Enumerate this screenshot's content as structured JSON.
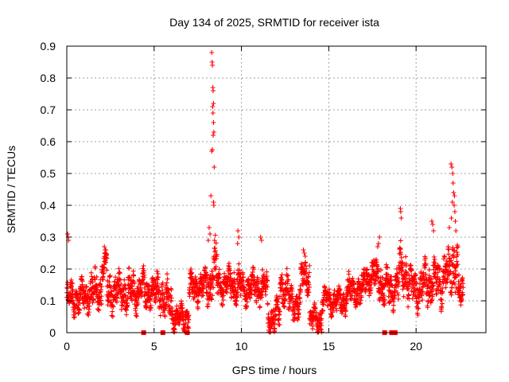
{
  "chart_data": {
    "type": "scatter",
    "title": "Day 134 of 2025, SRMTID for receiver ista",
    "xlabel": "GPS time / hours",
    "ylabel": "SRMTID / TECUs",
    "xlim": [
      0,
      24
    ],
    "ylim": [
      0,
      0.9
    ],
    "xticks": [
      0,
      5,
      10,
      15,
      20
    ],
    "yticks": [
      0,
      0.1,
      0.2,
      0.3,
      0.4,
      0.5,
      0.6,
      0.7,
      0.8,
      0.9
    ],
    "grid": true,
    "marker": "plus",
    "color": "#ff0000",
    "series": [
      {
        "name": "SRMTID",
        "segments": [
          {
            "x0": 0.0,
            "x1": 1.2,
            "base": 0.11,
            "amp": 0.05,
            "max": 0.31
          },
          {
            "x0": 1.2,
            "x1": 2.0,
            "base": 0.13,
            "amp": 0.06,
            "max": 0.25
          },
          {
            "x0": 2.0,
            "x1": 2.3,
            "base": 0.21,
            "amp": 0.04,
            "max": 0.27
          },
          {
            "x0": 2.3,
            "x1": 3.5,
            "base": 0.13,
            "amp": 0.06,
            "max": 0.26
          },
          {
            "x0": 3.5,
            "x1": 4.6,
            "base": 0.13,
            "amp": 0.06,
            "max": 0.21
          },
          {
            "x0": 4.6,
            "x1": 5.5,
            "base": 0.13,
            "amp": 0.06,
            "max": 0.24
          },
          {
            "x0": 5.5,
            "x1": 6.0,
            "base": 0.1,
            "amp": 0.06,
            "max": 0.22
          },
          {
            "x0": 6.0,
            "x1": 7.0,
            "base": 0.05,
            "amp": 0.04,
            "max": 0.11
          },
          {
            "x0": 7.0,
            "x1": 7.8,
            "base": 0.14,
            "amp": 0.05,
            "max": 0.2
          },
          {
            "x0": 7.8,
            "x1": 8.3,
            "base": 0.15,
            "amp": 0.06,
            "max": 0.33
          },
          {
            "x0": 8.3,
            "x1": 8.6,
            "base": 0.2,
            "amp": 0.08,
            "max": 0.88
          },
          {
            "x0": 8.6,
            "x1": 9.5,
            "base": 0.15,
            "amp": 0.05,
            "max": 0.23
          },
          {
            "x0": 9.5,
            "x1": 10.0,
            "base": 0.15,
            "amp": 0.06,
            "max": 0.32
          },
          {
            "x0": 10.0,
            "x1": 11.5,
            "base": 0.14,
            "amp": 0.05,
            "max": 0.3
          },
          {
            "x0": 11.5,
            "x1": 12.2,
            "base": 0.05,
            "amp": 0.05,
            "max": 0.15
          },
          {
            "x0": 12.2,
            "x1": 12.7,
            "base": 0.14,
            "amp": 0.06,
            "max": 0.23
          },
          {
            "x0": 12.7,
            "x1": 13.4,
            "base": 0.09,
            "amp": 0.05,
            "max": 0.17
          },
          {
            "x0": 13.4,
            "x1": 13.9,
            "base": 0.18,
            "amp": 0.05,
            "max": 0.26
          },
          {
            "x0": 13.9,
            "x1": 14.6,
            "base": 0.04,
            "amp": 0.04,
            "max": 0.12
          },
          {
            "x0": 14.6,
            "x1": 16.0,
            "base": 0.1,
            "amp": 0.04,
            "max": 0.18
          },
          {
            "x0": 16.0,
            "x1": 17.0,
            "base": 0.13,
            "amp": 0.05,
            "max": 0.21
          },
          {
            "x0": 17.0,
            "x1": 18.0,
            "base": 0.18,
            "amp": 0.06,
            "max": 0.3
          },
          {
            "x0": 18.0,
            "x1": 19.0,
            "base": 0.14,
            "amp": 0.06,
            "max": 0.25
          },
          {
            "x0": 19.0,
            "x1": 19.5,
            "base": 0.2,
            "amp": 0.07,
            "max": 0.39
          },
          {
            "x0": 19.5,
            "x1": 20.5,
            "base": 0.14,
            "amp": 0.06,
            "max": 0.28
          },
          {
            "x0": 20.5,
            "x1": 21.5,
            "base": 0.16,
            "amp": 0.07,
            "max": 0.35
          },
          {
            "x0": 21.5,
            "x1": 22.0,
            "base": 0.18,
            "amp": 0.07,
            "max": 0.3
          },
          {
            "x0": 22.0,
            "x1": 22.4,
            "base": 0.22,
            "amp": 0.1,
            "max": 0.53
          },
          {
            "x0": 22.4,
            "x1": 22.7,
            "base": 0.12,
            "amp": 0.05,
            "max": 0.22
          }
        ],
        "peaks": [
          [
            8.3,
            0.88
          ],
          [
            8.32,
            0.85
          ],
          [
            8.34,
            0.84
          ],
          [
            8.36,
            0.77
          ],
          [
            8.38,
            0.76
          ],
          [
            8.4,
            0.72
          ],
          [
            8.35,
            0.71
          ],
          [
            8.37,
            0.69
          ],
          [
            8.4,
            0.66
          ],
          [
            8.42,
            0.63
          ],
          [
            8.38,
            0.62
          ],
          [
            8.3,
            0.57
          ],
          [
            8.33,
            0.575
          ],
          [
            8.44,
            0.52
          ],
          [
            8.25,
            0.43
          ],
          [
            8.4,
            0.41
          ],
          [
            8.42,
            0.4
          ],
          [
            8.15,
            0.33
          ],
          [
            8.2,
            0.31
          ],
          [
            8.1,
            0.29
          ],
          [
            22.0,
            0.53
          ],
          [
            22.05,
            0.52
          ],
          [
            22.1,
            0.5
          ],
          [
            22.12,
            0.47
          ],
          [
            22.15,
            0.44
          ],
          [
            22.2,
            0.43
          ],
          [
            22.08,
            0.41
          ],
          [
            22.18,
            0.4
          ],
          [
            22.22,
            0.38
          ],
          [
            22.25,
            0.35
          ],
          [
            22.28,
            0.32
          ],
          [
            22.02,
            0.36
          ],
          [
            21.9,
            0.33
          ],
          [
            19.1,
            0.39
          ],
          [
            19.12,
            0.38
          ],
          [
            19.15,
            0.36
          ],
          [
            0.05,
            0.31
          ],
          [
            0.08,
            0.3
          ],
          [
            0.1,
            0.29
          ],
          [
            9.8,
            0.32
          ],
          [
            9.85,
            0.3
          ],
          [
            9.78,
            0.28
          ],
          [
            11.1,
            0.3
          ],
          [
            11.15,
            0.29
          ],
          [
            17.9,
            0.3
          ],
          [
            17.85,
            0.28
          ],
          [
            17.8,
            0.27
          ],
          [
            20.9,
            0.35
          ],
          [
            20.95,
            0.34
          ],
          [
            21.0,
            0.32
          ],
          [
            13.55,
            0.26
          ],
          [
            13.6,
            0.25
          ],
          [
            13.65,
            0.24
          ],
          [
            2.15,
            0.27
          ],
          [
            2.2,
            0.26
          ]
        ]
      },
      {
        "name": "zero markers",
        "marker": "square",
        "x": [
          4.4,
          5.5,
          6.9,
          18.2,
          18.6,
          18.8
        ],
        "y": [
          0,
          0,
          0,
          0,
          0,
          0
        ]
      }
    ]
  }
}
